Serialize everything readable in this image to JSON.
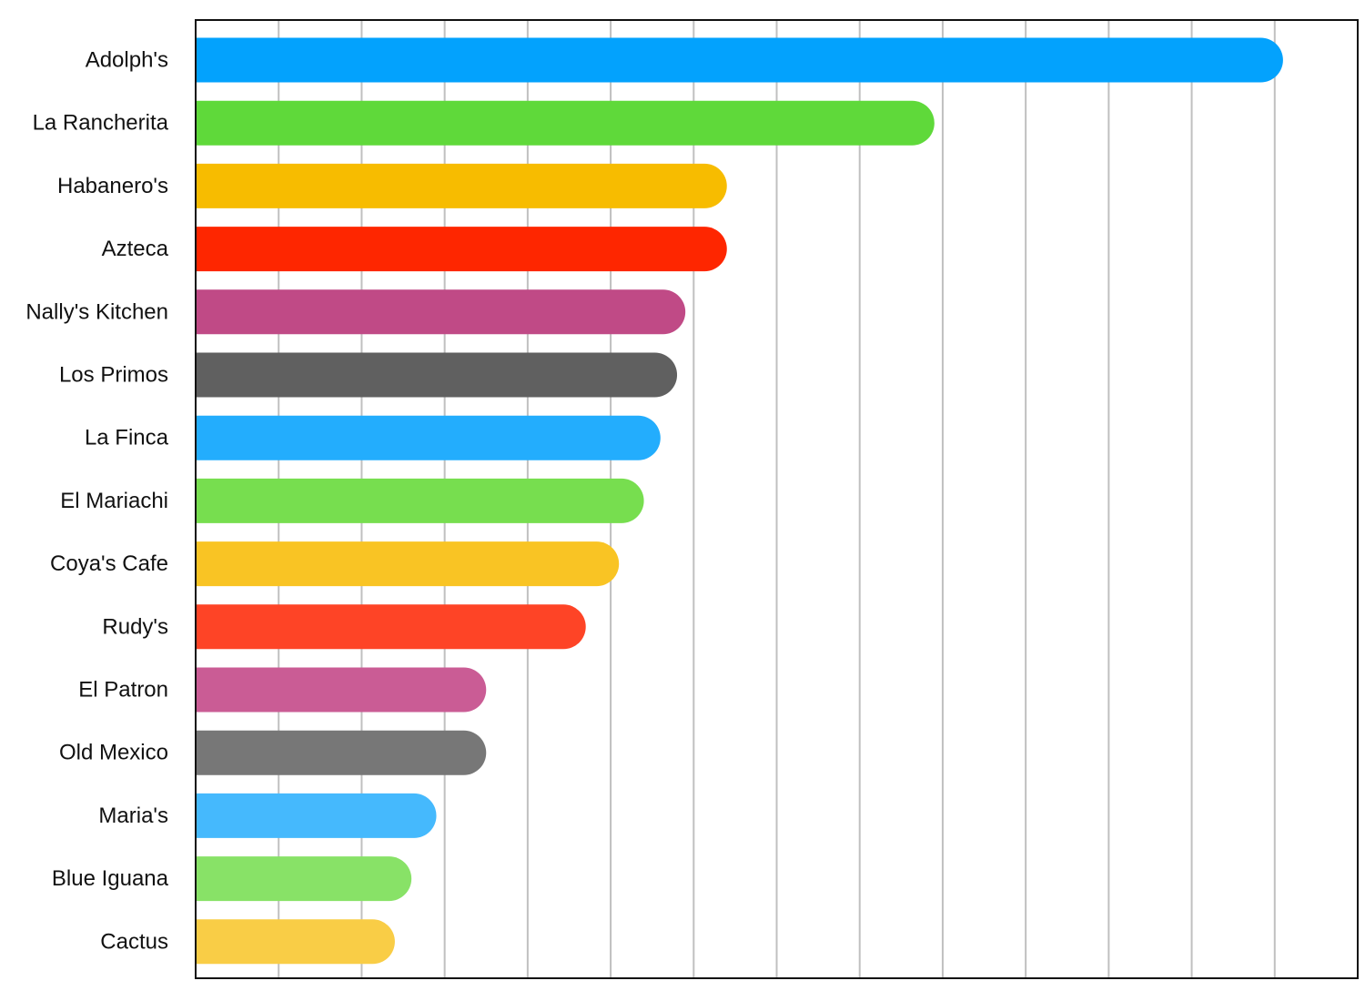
{
  "chart_data": {
    "type": "bar",
    "orientation": "horizontal",
    "categories": [
      "Adolph's",
      "La Rancherita",
      "Habanero's",
      "Azteca",
      "Nally's Kitchen",
      "Los Primos",
      "La Finca",
      "El Mariachi",
      "Coya's Cafe",
      "Rudy's",
      "El Patron",
      "Old Mexico",
      "Maria's",
      "Blue Iguana",
      "Cactus"
    ],
    "values": [
      13.1,
      8.9,
      6.4,
      6.4,
      5.9,
      5.8,
      5.6,
      5.4,
      5.1,
      4.7,
      3.5,
      3.5,
      2.9,
      2.6,
      2.4
    ],
    "colors": [
      "#03a2fd",
      "#5fd93a",
      "#f7bc00",
      "#fe2600",
      "#c04a86",
      "#606060",
      "#23adfd",
      "#77de4f",
      "#f9c424",
      "#fe4426",
      "#ca5c95",
      "#777777",
      "#45b9fd",
      "#88e267",
      "#f9cd46"
    ],
    "xlim": [
      0,
      14
    ],
    "x_gridlines": [
      1,
      2,
      3,
      4,
      5,
      6,
      7,
      8,
      9,
      10,
      11,
      12,
      13
    ],
    "x_tick_labels_shown": false,
    "grid": true,
    "legend": "none",
    "title": "",
    "xlabel": "",
    "ylabel": ""
  }
}
